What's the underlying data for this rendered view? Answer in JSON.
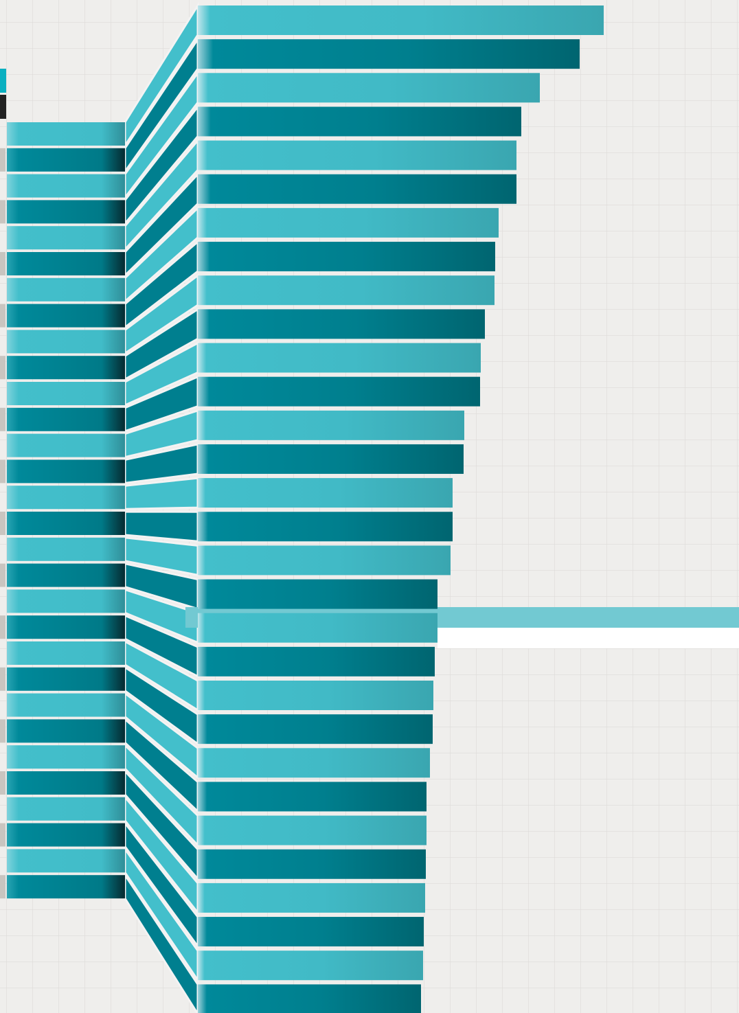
{
  "chart_data": {
    "type": "bar",
    "values": [
      591,
      556,
      498,
      471,
      464,
      464,
      438,
      433,
      432,
      418,
      412,
      411,
      388,
      387,
      371,
      371,
      368,
      349,
      349,
      345,
      343,
      342,
      338,
      333,
      333,
      332,
      331,
      329,
      328,
      325
    ],
    "colors": [
      "#43bfcb",
      "#007f8f"
    ],
    "xlim": [
      0,
      782
    ]
  }
}
